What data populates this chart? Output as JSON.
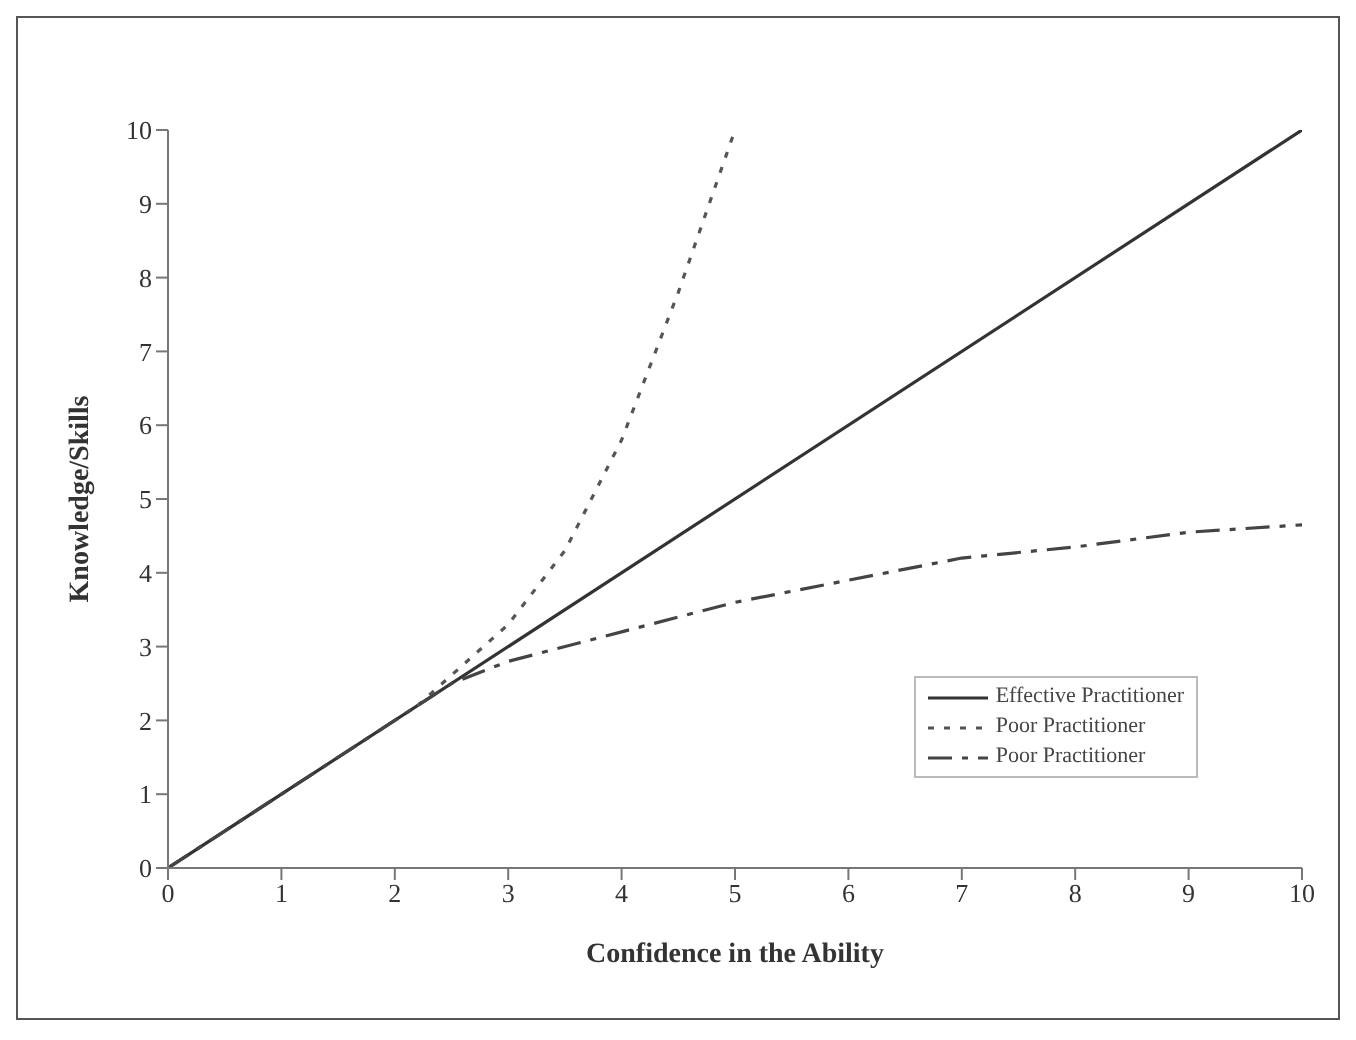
{
  "chart_data": {
    "type": "line",
    "xlabel": "Confidence in the Ability",
    "ylabel": "Knowledge/Skills",
    "xlim": [
      0,
      10
    ],
    "xticks": [
      0,
      1,
      2,
      3,
      4,
      5,
      6,
      7,
      8,
      9,
      10
    ],
    "ylim": [
      0,
      10
    ],
    "yticks": [
      0,
      1,
      2,
      3,
      4,
      5,
      6,
      7,
      8,
      9,
      10
    ],
    "grid": false,
    "legend": "bottom right",
    "marker": "none",
    "series": [
      {
        "name": "Effective Practitioner",
        "color": "#333333",
        "line_style": "solid",
        "x": [
          0,
          10
        ],
        "values": [
          0,
          10
        ]
      },
      {
        "name": "Poor Practitioner",
        "color": "#555555",
        "line_style": "dotted",
        "x": [
          2.2,
          3,
          3.5,
          4,
          4.5,
          5
        ],
        "values": [
          2.2,
          3.3,
          4.3,
          5.8,
          7.8,
          10
        ]
      },
      {
        "name": "Poor Practitioner",
        "color": "#444444",
        "line_style": "dashed",
        "x": [
          0,
          2,
          2.5,
          3,
          4,
          5,
          6,
          7,
          8,
          9,
          10
        ],
        "values": [
          0,
          2,
          2.5,
          2.8,
          3.2,
          3.6,
          3.9,
          4.2,
          4.35,
          4.55,
          4.65
        ]
      }
    ]
  }
}
